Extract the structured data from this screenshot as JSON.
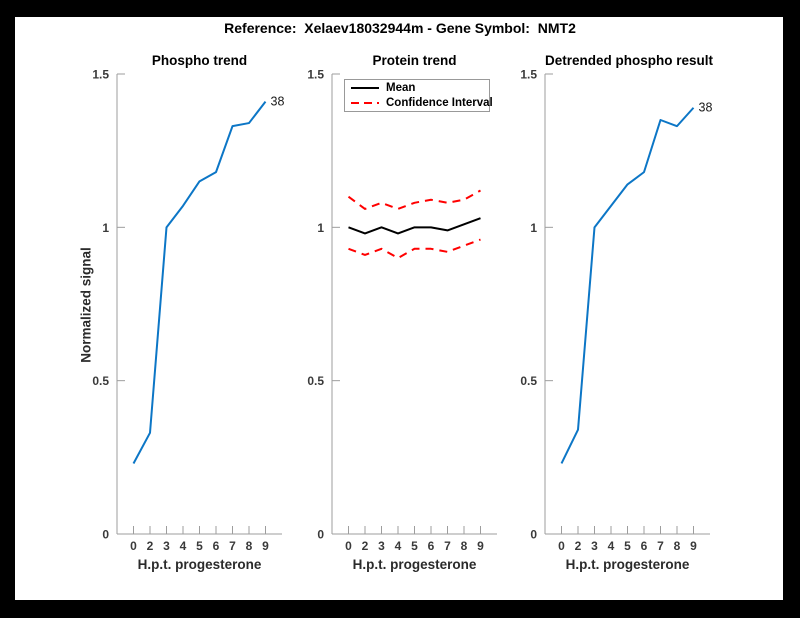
{
  "figure": {
    "title": "Reference:  Xelaev18032944m - Gene Symbol:  NMT2"
  },
  "axes": {
    "xlabel": "H.p.t. progesterone",
    "ylabel": "Normalized signal",
    "xticklabels": [
      "0",
      "2",
      "3",
      "4",
      "5",
      "6",
      "7",
      "8",
      "9"
    ],
    "yticks": [
      0,
      0.5,
      1,
      1.5
    ],
    "yticklabels": [
      "0",
      "0.5",
      "1",
      "1.5"
    ],
    "ylim": [
      0,
      1.5
    ],
    "axis_color": "#9d9d9d",
    "tick_label_color": "#3a3a3a"
  },
  "legend": {
    "entries": [
      {
        "label": "Mean",
        "style": "solid",
        "color": "#000000"
      },
      {
        "label": "Confidence Interval",
        "style": "dashed",
        "color": "#ff0000"
      }
    ]
  },
  "chart_data": [
    {
      "type": "line",
      "title": "Phospho trend",
      "xlabel": "H.p.t. progesterone",
      "ylabel": "Normalized signal",
      "categories": [
        "0",
        "2",
        "3",
        "4",
        "5",
        "6",
        "7",
        "8",
        "9"
      ],
      "ylim": [
        0,
        1.5
      ],
      "grid": false,
      "series": [
        {
          "name": "phospho-signal",
          "color": "#0C76C6",
          "style": "solid",
          "values": [
            0.23,
            0.33,
            1.0,
            1.07,
            1.15,
            1.18,
            1.33,
            1.34,
            1.41
          ]
        }
      ],
      "annotation": "38"
    },
    {
      "type": "line",
      "title": "Protein trend",
      "xlabel": "H.p.t. progesterone",
      "categories": [
        "0",
        "2",
        "3",
        "4",
        "5",
        "6",
        "7",
        "8",
        "9"
      ],
      "ylim": [
        0,
        1.5
      ],
      "grid": false,
      "legend_position": "top-left-inside",
      "series": [
        {
          "name": "mean",
          "color": "#000000",
          "style": "solid",
          "values": [
            1.0,
            0.98,
            1.0,
            0.98,
            1.0,
            1.0,
            0.99,
            1.01,
            1.03
          ]
        },
        {
          "name": "confidence-upper",
          "color": "#ff0000",
          "style": "dashed",
          "values": [
            1.1,
            1.06,
            1.08,
            1.06,
            1.08,
            1.09,
            1.08,
            1.09,
            1.12
          ]
        },
        {
          "name": "confidence-lower",
          "color": "#ff0000",
          "style": "dashed",
          "values": [
            0.93,
            0.91,
            0.93,
            0.9,
            0.93,
            0.93,
            0.92,
            0.94,
            0.96
          ]
        }
      ]
    },
    {
      "type": "line",
      "title": "Detrended phospho result",
      "xlabel": "H.p.t. progesterone",
      "categories": [
        "0",
        "2",
        "3",
        "4",
        "5",
        "6",
        "7",
        "8",
        "9"
      ],
      "ylim": [
        0,
        1.5
      ],
      "grid": false,
      "series": [
        {
          "name": "detrended-phospho-signal",
          "color": "#0C76C6",
          "style": "solid",
          "values": [
            0.23,
            0.34,
            1.0,
            1.07,
            1.14,
            1.18,
            1.35,
            1.33,
            1.39
          ]
        }
      ],
      "annotation": "38"
    }
  ]
}
